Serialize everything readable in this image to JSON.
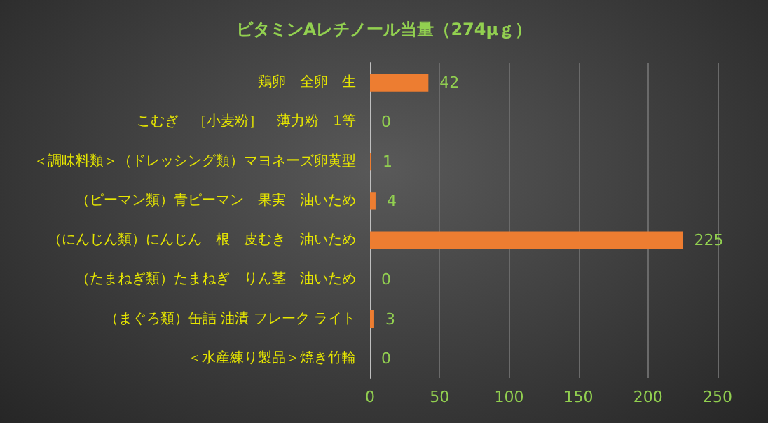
{
  "chart_data": {
    "type": "bar",
    "orientation": "horizontal",
    "title": "ビタミンAレチノール当量（274μｇ）",
    "categories": [
      "鶏卵　全卵　生",
      "こむぎ　［小麦粉］　薄力粉　1等",
      "＜調味料類＞（ドレッシング類）マヨネーズ卵黄型",
      "（ピーマン類）青ピーマン　果実　油いため",
      "（にんじん類）にんじん　根　皮むき　油いため",
      "（たまねぎ類）たまねぎ　りん茎　油いため",
      "（まぐろ類）缶詰 油漬 フレーク ライト",
      "＜水産練り製品＞焼き竹輪"
    ],
    "values": [
      42,
      0,
      1,
      4,
      225,
      0,
      3,
      0
    ],
    "color": "#ed7d31",
    "xlim": [
      0,
      250
    ],
    "xticks": [
      0,
      50,
      100,
      150,
      200,
      250
    ],
    "grid": "x",
    "data_labels": true
  }
}
